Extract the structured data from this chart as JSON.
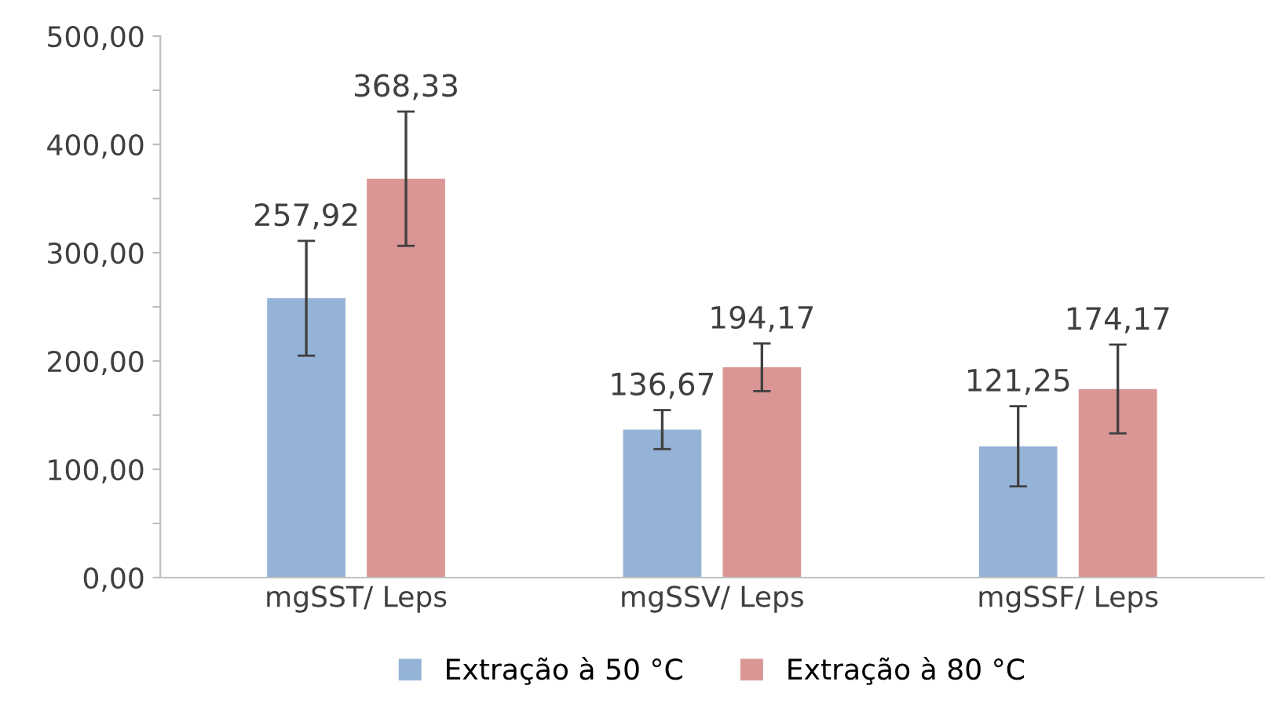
{
  "chart_data": {
    "type": "bar",
    "categories": [
      "mgSST/ Leps",
      "mgSSV/ Leps",
      "mgSSF/ Leps"
    ],
    "series": [
      {
        "name": "Extração à 50 °C",
        "color": "#95b3d7",
        "values": [
          257.92,
          136.67,
          121.25
        ],
        "errors": [
          53,
          18,
          37
        ],
        "value_labels": [
          "257,92",
          "136,67",
          "121,25"
        ]
      },
      {
        "name": "Extração à 80 °C",
        "color": "#d99694",
        "values": [
          368.33,
          194.17,
          174.17
        ],
        "errors": [
          62,
          22,
          41
        ],
        "value_labels": [
          "368,33",
          "194,17",
          "174,17"
        ]
      }
    ],
    "ylim": [
      0,
      500
    ],
    "yticks": [
      {
        "value": 0,
        "label": "0,00"
      },
      {
        "value": 50,
        "label": null
      },
      {
        "value": 100,
        "label": "100,00"
      },
      {
        "value": 150,
        "label": null
      },
      {
        "value": 200,
        "label": "200,00"
      },
      {
        "value": 250,
        "label": null
      },
      {
        "value": 300,
        "label": "300,00"
      },
      {
        "value": 350,
        "label": null
      },
      {
        "value": 400,
        "label": "400,00"
      },
      {
        "value": 450,
        "label": null
      },
      {
        "value": 500,
        "label": "500,00"
      }
    ],
    "grid": false,
    "legend": "bottom"
  }
}
